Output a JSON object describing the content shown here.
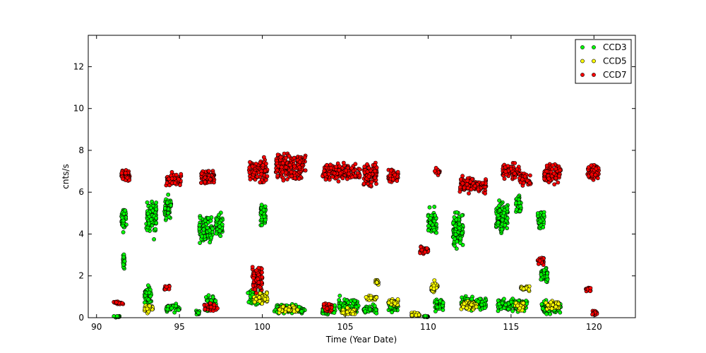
{
  "chart_data": {
    "type": "scatter",
    "xlabel": "Time (Year Date)",
    "ylabel": "cnts/s",
    "xlim": [
      89.5,
      122.5
    ],
    "ylim": [
      0,
      13.5
    ],
    "xticks": [
      90,
      95,
      100,
      105,
      110,
      115,
      120
    ],
    "yticks": [
      0,
      2,
      4,
      6,
      8,
      10,
      12
    ],
    "grid": false,
    "legend_position": "top-right",
    "series": [
      {
        "name": "CCD3",
        "color": "#00ff00",
        "clusters": [
          {
            "x": [
              91.0,
              91.4
            ],
            "y": [
              0.0,
              0.1
            ]
          },
          {
            "x": [
              91.5,
              91.8
            ],
            "y": [
              4.0,
              5.4
            ]
          },
          {
            "x": [
              91.6,
              91.7
            ],
            "y": [
              2.2,
              3.3
            ]
          },
          {
            "x": [
              92.9,
              93.3
            ],
            "y": [
              0.6,
              1.7
            ]
          },
          {
            "x": [
              93.0,
              93.6
            ],
            "y": [
              3.6,
              5.9
            ]
          },
          {
            "x": [
              94.1,
              94.5
            ],
            "y": [
              4.5,
              6.0
            ]
          },
          {
            "x": [
              94.2,
              95.0
            ],
            "y": [
              0.2,
              0.7
            ]
          },
          {
            "x": [
              96.0,
              96.2
            ],
            "y": [
              0.1,
              0.4
            ]
          },
          {
            "x": [
              96.2,
              97.0
            ],
            "y": [
              3.3,
              5.1
            ]
          },
          {
            "x": [
              96.6,
              97.2
            ],
            "y": [
              0.2,
              1.2
            ]
          },
          {
            "x": [
              97.2,
              97.6
            ],
            "y": [
              3.6,
              5.3
            ]
          },
          {
            "x": [
              99.1,
              100.0
            ],
            "y": [
              0.5,
              1.4
            ]
          },
          {
            "x": [
              99.9,
              100.2
            ],
            "y": [
              4.2,
              5.9
            ]
          },
          {
            "x": [
              100.7,
              102.6
            ],
            "y": [
              0.1,
              0.7
            ]
          },
          {
            "x": [
              103.6,
              104.4
            ],
            "y": [
              0.1,
              0.7
            ]
          },
          {
            "x": [
              104.6,
              105.8
            ],
            "y": [
              0.1,
              1.1
            ]
          },
          {
            "x": [
              106.1,
              106.9
            ],
            "y": [
              0.1,
              0.7
            ]
          },
          {
            "x": [
              107.6,
              108.2
            ],
            "y": [
              0.2,
              0.9
            ]
          },
          {
            "x": [
              109.7,
              110.0
            ],
            "y": [
              0.0,
              0.1
            ]
          },
          {
            "x": [
              110.0,
              110.5
            ],
            "y": [
              3.6,
              5.4
            ]
          },
          {
            "x": [
              110.4,
              110.9
            ],
            "y": [
              0.2,
              1.0
            ]
          },
          {
            "x": [
              111.5,
              112.1
            ],
            "y": [
              3.0,
              5.3
            ]
          },
          {
            "x": [
              112.0,
              113.5
            ],
            "y": [
              0.3,
              1.1
            ]
          },
          {
            "x": [
              114.1,
              114.8
            ],
            "y": [
              3.8,
              5.8
            ]
          },
          {
            "x": [
              114.2,
              116.0
            ],
            "y": [
              0.2,
              1.0
            ]
          },
          {
            "x": [
              115.3,
              115.6
            ],
            "y": [
              4.8,
              6.0
            ]
          },
          {
            "x": [
              116.6,
              117.0
            ],
            "y": [
              4.1,
              5.3
            ]
          },
          {
            "x": [
              116.8,
              117.2
            ],
            "y": [
              1.5,
              2.6
            ]
          },
          {
            "x": [
              116.8,
              118.0
            ],
            "y": [
              0.0,
              1.0
            ]
          }
        ]
      },
      {
        "name": "CCD5",
        "color": "#ffff00",
        "clusters": [
          {
            "x": [
              92.9,
              93.4
            ],
            "y": [
              0.2,
              0.7
            ]
          },
          {
            "x": [
              99.5,
              100.3
            ],
            "y": [
              0.6,
              1.3
            ]
          },
          {
            "x": [
              100.9,
              102.2
            ],
            "y": [
              0.2,
              0.6
            ]
          },
          {
            "x": [
              104.8,
              105.6
            ],
            "y": [
              0.1,
              0.5
            ]
          },
          {
            "x": [
              106.2,
              106.9
            ],
            "y": [
              0.8,
              1.1
            ]
          },
          {
            "x": [
              106.8,
              107.0
            ],
            "y": [
              1.5,
              1.9
            ]
          },
          {
            "x": [
              107.6,
              108.2
            ],
            "y": [
              0.5,
              1.0
            ]
          },
          {
            "x": [
              109.0,
              109.5
            ],
            "y": [
              0.0,
              0.3
            ]
          },
          {
            "x": [
              110.2,
              110.6
            ],
            "y": [
              1.0,
              1.9
            ]
          },
          {
            "x": [
              112.0,
              113.0
            ],
            "y": [
              0.3,
              0.9
            ]
          },
          {
            "x": [
              115.6,
              116.1
            ],
            "y": [
              1.2,
              1.6
            ]
          },
          {
            "x": [
              115.2,
              115.8
            ],
            "y": [
              0.3,
              0.8
            ]
          },
          {
            "x": [
              117.1,
              117.9
            ],
            "y": [
              0.3,
              0.9
            ]
          }
        ]
      },
      {
        "name": "CCD7",
        "color": "#ff0000",
        "clusters": [
          {
            "x": [
              91.0,
              91.6
            ],
            "y": [
              0.6,
              0.8
            ]
          },
          {
            "x": [
              91.5,
              92.0
            ],
            "y": [
              6.4,
              7.2
            ]
          },
          {
            "x": [
              94.1,
              94.4
            ],
            "y": [
              1.2,
              1.6
            ]
          },
          {
            "x": [
              94.2,
              95.1
            ],
            "y": [
              6.2,
              7.0
            ]
          },
          {
            "x": [
              96.3,
              97.1
            ],
            "y": [
              6.2,
              7.2
            ]
          },
          {
            "x": [
              96.5,
              97.3
            ],
            "y": [
              0.2,
              0.8
            ]
          },
          {
            "x": [
              99.2,
              100.3
            ],
            "y": [
              6.3,
              7.8
            ]
          },
          {
            "x": [
              99.4,
              100.0
            ],
            "y": [
              1.0,
              2.7
            ]
          },
          {
            "x": [
              100.8,
              102.6
            ],
            "y": [
              6.4,
              8.1
            ]
          },
          {
            "x": [
              103.6,
              105.9
            ],
            "y": [
              6.4,
              7.5
            ]
          },
          {
            "x": [
              103.7,
              104.2
            ],
            "y": [
              0.2,
              0.8
            ]
          },
          {
            "x": [
              106.1,
              106.9
            ],
            "y": [
              6.0,
              7.7
            ]
          },
          {
            "x": [
              107.6,
              108.2
            ],
            "y": [
              6.3,
              7.2
            ]
          },
          {
            "x": [
              109.5,
              110.0
            ],
            "y": [
              3.0,
              3.5
            ]
          },
          {
            "x": [
              110.4,
              110.7
            ],
            "y": [
              6.8,
              7.2
            ]
          },
          {
            "x": [
              111.9,
              113.5
            ],
            "y": [
              5.8,
              6.9
            ]
          },
          {
            "x": [
              114.5,
              115.5
            ],
            "y": [
              6.5,
              7.5
            ]
          },
          {
            "x": [
              115.5,
              116.2
            ],
            "y": [
              6.2,
              7.0
            ]
          },
          {
            "x": [
              116.6,
              117.0
            ],
            "y": [
              2.4,
              3.0
            ]
          },
          {
            "x": [
              117.0,
              118.0
            ],
            "y": [
              6.3,
              7.5
            ]
          },
          {
            "x": [
              119.6,
              120.3
            ],
            "y": [
              6.4,
              7.6
            ]
          },
          {
            "x": [
              119.5,
              119.8
            ],
            "y": [
              1.2,
              1.5
            ]
          },
          {
            "x": [
              119.9,
              120.2
            ],
            "y": [
              0.1,
              0.4
            ]
          }
        ]
      }
    ]
  }
}
